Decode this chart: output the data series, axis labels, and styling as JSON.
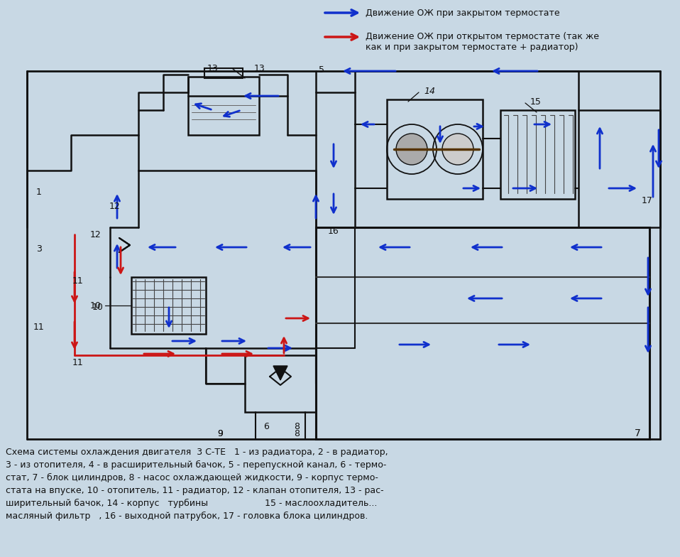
{
  "bg": "#c8d8e4",
  "blue": "#1030cc",
  "red": "#cc1515",
  "black": "#111111",
  "legend_blue": "Движение ОЖ при закрытом термостате",
  "legend_red": "Движение ОЖ при открытом термостате (так же\nкак и при закрытом термостате + радиатор)",
  "caption": "Схема системы охлаждения двигателя  3 С-ТЕ   1 - из радиатора, 2 - в радиатор,\n3 - из отопителя, 4 - в расширительный бачок, 5 - перепускной канал, 6 - термо-\nстат, 7 - блок цилиндров, 8 - насос охлаждающей жидкости, 9 - корпус термо-\nстата на впуске, 10 - отопитель, 11 - радиатор, 12 - клапан отопителя, 13 - рас-\nширительный бачок, 14 - корпус   турбины                    15 - маслоохладитель...\nмасляный фильтр   , 16 - выходной патрубок, 17 - головка блока цилиндров."
}
